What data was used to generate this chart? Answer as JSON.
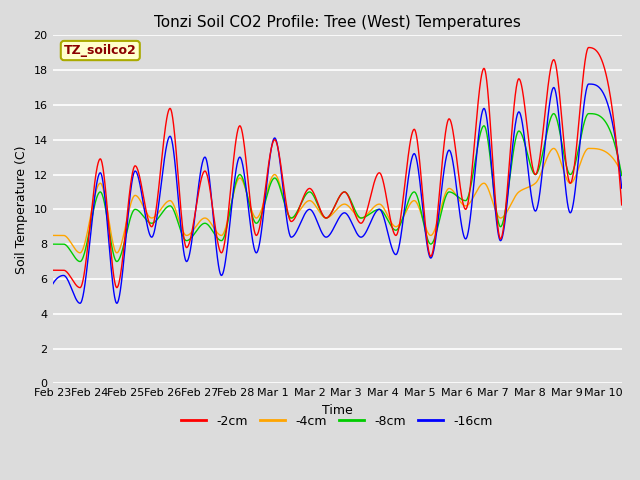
{
  "title": "Tonzi Soil CO2 Profile: Tree (West) Temperatures",
  "xlabel": "Time",
  "ylabel": "Soil Temperature (C)",
  "ylim": [
    0,
    20
  ],
  "yticks": [
    0,
    2,
    4,
    6,
    8,
    10,
    12,
    14,
    16,
    18,
    20
  ],
  "legend_label": "TZ_soilco2",
  "series_labels": [
    "-2cm",
    "-4cm",
    "-8cm",
    "-16cm"
  ],
  "series_colors": [
    "#ff0000",
    "#ffa500",
    "#00cc00",
    "#0000ff"
  ],
  "bg_color": "#dcdcdc",
  "xtick_labels": [
    "Feb 23",
    "Feb 24",
    "Feb 25",
    "Feb 26",
    "Feb 27",
    "Feb 28",
    "Mar 1",
    "Mar 2",
    "Mar 3",
    "Mar 4",
    "Mar 5",
    "Mar 6",
    "Mar 7",
    "Mar 8",
    "Mar 9",
    "Mar 10"
  ],
  "peak_times": [
    0.3,
    1.3,
    2.25,
    3.2,
    4.15,
    5.1,
    6.05,
    7.0,
    7.95,
    8.9,
    9.85,
    10.8,
    11.75,
    12.7,
    13.65,
    14.6
  ],
  "peak_amps_red": [
    6.5,
    12.9,
    12.5,
    15.8,
    12.2,
    14.8,
    14.0,
    11.2,
    11.0,
    12.1,
    14.6,
    15.2,
    18.1,
    17.5,
    18.6,
    19.3
  ],
  "peak_amps_orange": [
    8.5,
    11.5,
    10.8,
    10.5,
    9.5,
    11.8,
    12.0,
    10.5,
    10.3,
    10.3,
    10.5,
    11.2,
    11.5,
    11.0,
    13.5,
    13.5
  ],
  "peak_amps_green": [
    8.0,
    11.0,
    10.0,
    10.2,
    9.2,
    12.0,
    11.8,
    11.0,
    11.0,
    10.0,
    11.0,
    11.0,
    14.8,
    14.5,
    15.5,
    15.5
  ],
  "peak_amps_blue": [
    6.2,
    12.1,
    12.2,
    14.2,
    13.0,
    13.0,
    14.1,
    10.0,
    9.8,
    10.0,
    13.2,
    13.4,
    15.8,
    15.6,
    17.0,
    17.2
  ],
  "trough_times": [
    -0.2,
    0.75,
    1.75,
    2.7,
    3.65,
    4.6,
    5.55,
    6.5,
    7.45,
    8.4,
    9.35,
    10.3,
    11.25,
    12.2,
    13.15,
    14.1,
    15.4
  ],
  "trough_amps_red": [
    6.5,
    5.5,
    5.5,
    9.0,
    7.8,
    7.5,
    8.5,
    9.3,
    9.5,
    9.2,
    8.5,
    7.3,
    10.0,
    8.3,
    12.0,
    11.5,
    12.8
  ],
  "trough_amps_orange": [
    8.5,
    7.5,
    7.5,
    9.5,
    8.5,
    8.5,
    9.5,
    9.5,
    9.5,
    9.5,
    9.0,
    8.5,
    10.2,
    9.5,
    11.5,
    11.5,
    12.5
  ],
  "trough_amps_green": [
    8.0,
    7.0,
    7.0,
    9.2,
    8.2,
    8.2,
    9.2,
    9.5,
    9.5,
    9.5,
    8.8,
    8.0,
    10.5,
    9.0,
    12.0,
    12.0,
    13.0
  ],
  "trough_amps_blue": [
    4.7,
    4.6,
    4.6,
    8.4,
    7.0,
    6.2,
    7.5,
    8.4,
    8.4,
    8.4,
    7.4,
    7.2,
    8.3,
    8.2,
    9.9,
    9.8,
    13.0
  ]
}
